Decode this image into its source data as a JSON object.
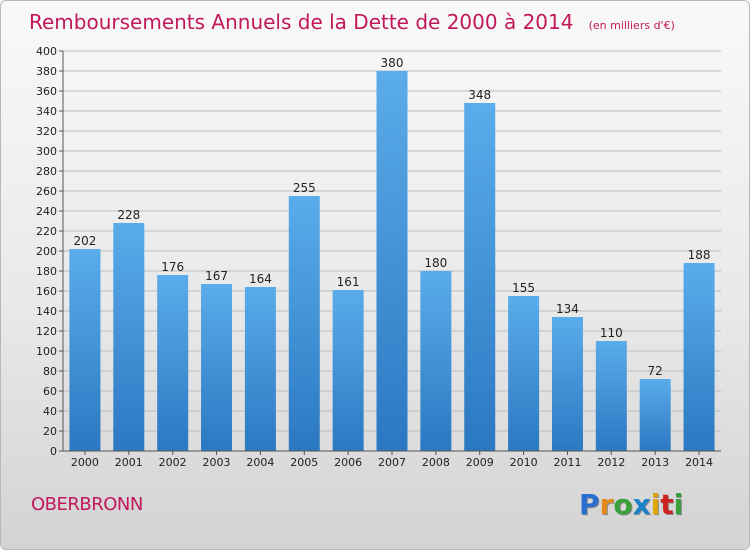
{
  "chart_data": {
    "type": "bar",
    "title": "Remboursements Annuels de la Dette de 2000 à 2014",
    "subtitle": "(en milliers d'€)",
    "categories": [
      "2000",
      "2001",
      "2002",
      "2003",
      "2004",
      "2005",
      "2006",
      "2007",
      "2008",
      "2009",
      "2010",
      "2011",
      "2012",
      "2013",
      "2014"
    ],
    "values": [
      202,
      228,
      176,
      167,
      164,
      255,
      161,
      380,
      180,
      348,
      155,
      134,
      110,
      72,
      188
    ],
    "ylim": [
      0,
      400
    ],
    "ytick_step": 20,
    "grid": true,
    "xlabel": "",
    "ylabel": "",
    "bar_color": "#3d8fd6"
  },
  "commune": "OBERBRONN",
  "logo": {
    "text": "Proxiti",
    "colors": [
      "#2a6fd0",
      "#e58a1f",
      "#3aa13a",
      "#1b84c9",
      "#e0a500",
      "#cc2222",
      "#3aa13a"
    ]
  }
}
